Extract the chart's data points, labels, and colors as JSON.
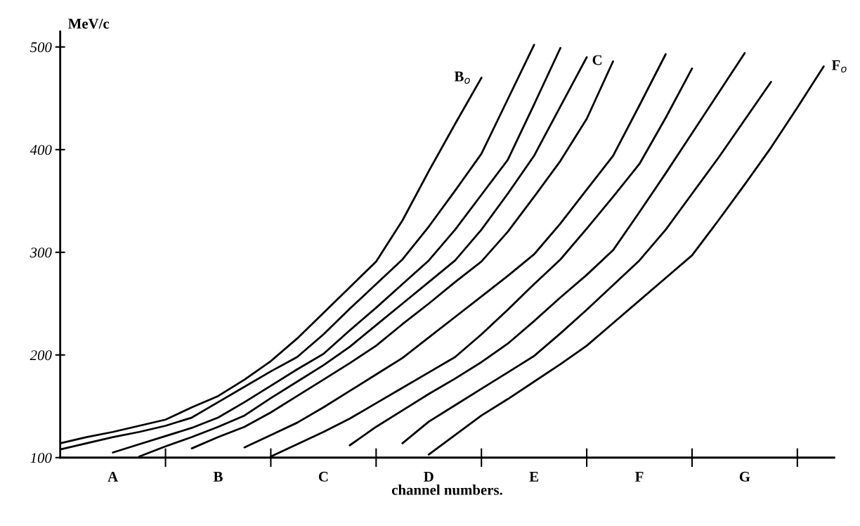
{
  "chart_data": {
    "type": "line",
    "ylabel": "MeV/c",
    "xlabel": "channel numbers.",
    "categories": [
      null,
      null,
      "A",
      null,
      null,
      null,
      "B",
      null,
      null,
      null,
      "C",
      null,
      null,
      null,
      "D",
      null,
      null,
      null,
      "E",
      null,
      null,
      null,
      "F",
      null,
      null,
      null,
      "G",
      null,
      null,
      null
    ],
    "ylim": [
      100,
      515
    ],
    "yticks": [
      100,
      200,
      300,
      400,
      500
    ],
    "series": [
      {
        "name": "B$_{o}$",
        "color": "#000000",
        "values": [
          114,
          120,
          125,
          131,
          137,
          149,
          160,
          176,
          194,
          216,
          241,
          266,
          291,
          331,
          379,
          425,
          470,
          null,
          null,
          null,
          null,
          null,
          null,
          null,
          null,
          null,
          null,
          null,
          null,
          null
        ]
      },
      {
        "color": "#000000",
        "values": [
          108,
          114,
          120,
          125,
          131,
          139,
          154,
          169,
          184,
          198,
          220,
          245,
          269,
          293,
          325,
          360,
          396,
          449,
          502,
          null,
          null,
          null,
          null,
          null,
          null,
          null,
          null,
          null,
          null,
          null
        ]
      },
      {
        "color": "#000000",
        "values": [
          null,
          null,
          105,
          113,
          121,
          129,
          139,
          154,
          170,
          186,
          201,
          224,
          246,
          269,
          292,
          322,
          356,
          390,
          444,
          499,
          null,
          null,
          null,
          null,
          null,
          null,
          null,
          null,
          null,
          null
        ]
      },
      {
        "color": "#000000",
        "values": [
          null,
          null,
          null,
          101,
          111,
          120,
          130,
          141,
          158,
          174,
          190,
          208,
          229,
          250,
          271,
          292,
          322,
          357,
          394,
          442,
          490,
          null,
          null,
          null,
          null,
          null,
          null,
          null,
          null,
          null
        ]
      },
      {
        "name": "C",
        "color": "#000000",
        "values": [
          null,
          null,
          null,
          null,
          null,
          109,
          120,
          130,
          144,
          160,
          176,
          192,
          209,
          230,
          250,
          271,
          291,
          320,
          354,
          389,
          430,
          486,
          null,
          null,
          null,
          null,
          null,
          null,
          null,
          null
        ]
      },
      {
        "color": "#000000",
        "values": [
          null,
          null,
          null,
          null,
          null,
          null,
          null,
          110,
          122,
          134,
          149,
          165,
          181,
          197,
          217,
          237,
          257,
          277,
          298,
          328,
          361,
          394,
          443,
          493,
          null,
          null,
          null,
          null,
          null,
          null
        ]
      },
      {
        "color": "#000000",
        "values": [
          null,
          null,
          null,
          null,
          null,
          null,
          null,
          null,
          101,
          113,
          125,
          138,
          153,
          168,
          183,
          198,
          220,
          244,
          269,
          293,
          323,
          354,
          386,
          431,
          479,
          null,
          null,
          null,
          null,
          null
        ]
      },
      {
        "color": "#000000",
        "values": [
          null,
          null,
          null,
          null,
          null,
          null,
          null,
          null,
          null,
          null,
          null,
          112,
          130,
          146,
          162,
          177,
          193,
          211,
          233,
          256,
          278,
          302,
          339,
          377,
          416,
          455,
          494,
          null,
          null,
          null
        ]
      },
      {
        "color": "#000000",
        "values": [
          null,
          null,
          null,
          null,
          null,
          null,
          null,
          null,
          null,
          null,
          null,
          null,
          null,
          114,
          135,
          151,
          167,
          183,
          199,
          221,
          244,
          268,
          292,
          322,
          357,
          392,
          429,
          466,
          null,
          null
        ]
      },
      {
        "name": "F$_{o}$",
        "color": "#000000",
        "values": [
          null,
          null,
          null,
          null,
          null,
          null,
          null,
          null,
          null,
          null,
          null,
          null,
          null,
          null,
          103,
          122,
          141,
          157,
          174,
          191,
          209,
          231,
          253,
          275,
          297,
          331,
          366,
          402,
          441,
          481
        ]
      }
    ]
  }
}
